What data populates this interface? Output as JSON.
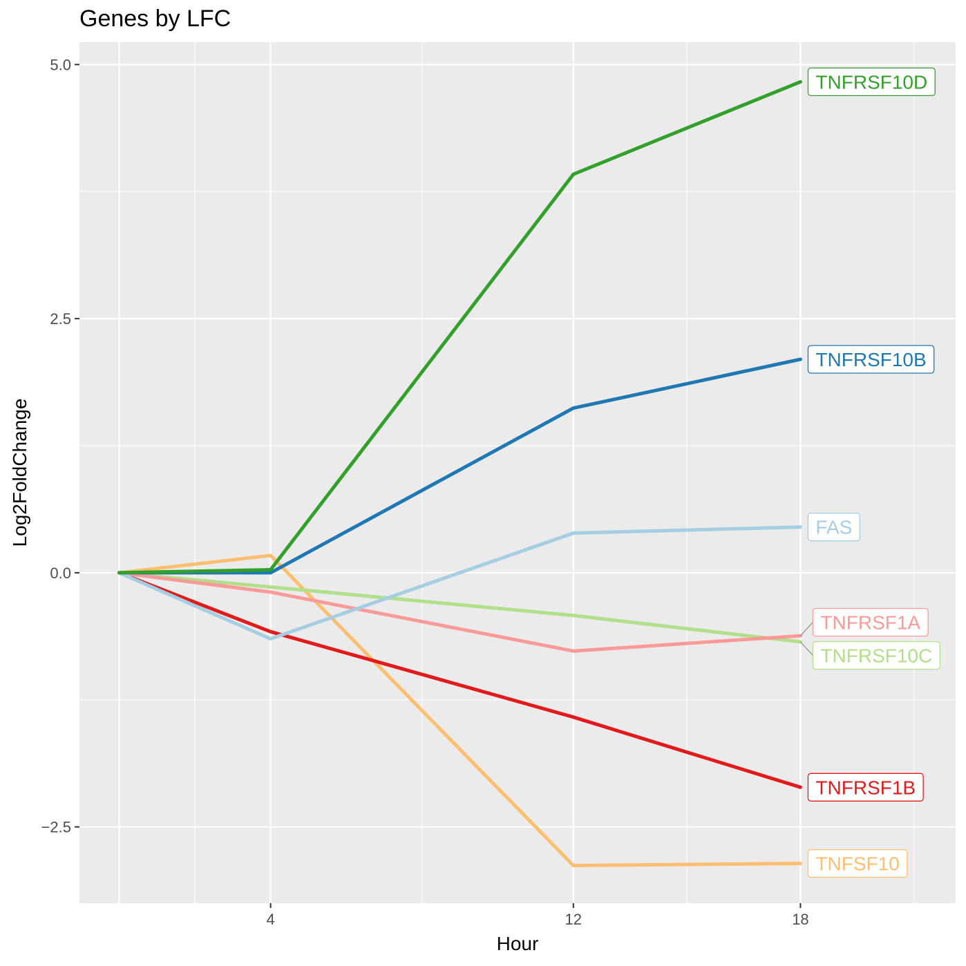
{
  "chart_data": {
    "type": "line",
    "title": "Genes by LFC",
    "xlabel": "Hour",
    "ylabel": "Log2FoldChange",
    "x": [
      0,
      4,
      12,
      18
    ],
    "x_ticks": [
      4,
      12,
      18
    ],
    "x_tick_labels": [
      "4",
      "12",
      "18"
    ],
    "xlim": [
      -1.05,
      22.1
    ],
    "y_ticks": [
      5.0,
      2.5,
      0.0,
      -2.5
    ],
    "y_tick_labels": [
      "5.0",
      "2.5",
      "0.0",
      "−2.5"
    ],
    "ylim": [
      -3.25,
      5.22
    ],
    "grid": true,
    "legend": "none (direct labels at line ends)",
    "series": [
      {
        "name": "TNFRSF10D",
        "color": "#33a02c",
        "values": [
          0,
          0.03,
          3.92,
          4.83
        ]
      },
      {
        "name": "TNFRSF10B",
        "color": "#1f78b4",
        "values": [
          0,
          0.0,
          1.62,
          2.1
        ]
      },
      {
        "name": "FAS",
        "color": "#a6cee3",
        "values": [
          0,
          -0.65,
          0.39,
          0.45
        ]
      },
      {
        "name": "TNFRSF1A",
        "color": "#fb9a99",
        "values": [
          0,
          -0.19,
          -0.77,
          -0.62
        ]
      },
      {
        "name": "TNFRSF10C",
        "color": "#b2df8a",
        "values": [
          0,
          -0.14,
          -0.42,
          -0.68
        ]
      },
      {
        "name": "TNFRSF1B",
        "color": "#e31a1c",
        "values": [
          0,
          -0.58,
          -1.42,
          -2.11
        ]
      },
      {
        "name": "TNFSF10",
        "color": "#fdbf6f",
        "values": [
          0,
          0.17,
          -2.88,
          -2.86
        ]
      }
    ]
  }
}
